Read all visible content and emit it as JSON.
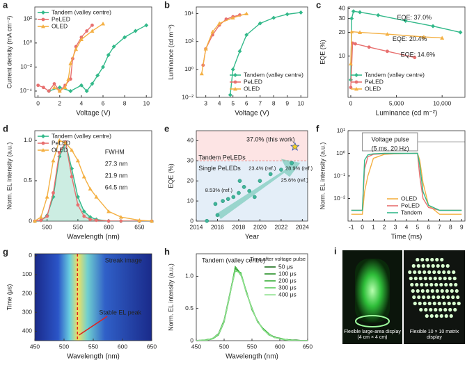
{
  "chart_data": [
    {
      "panel": "a",
      "type": "line",
      "x_label": "Voltage (V)",
      "y_label": "Current density (mA cm⁻²)",
      "log_y": true,
      "xlim": [
        -0.3,
        10.5
      ],
      "xticks": [
        0,
        2,
        4,
        6,
        8,
        10
      ],
      "ylim": [
        3e-05,
        1000
      ],
      "yticks": [
        {
          "value": 0.0001,
          "label": "10⁻⁴"
        },
        {
          "value": 0.01,
          "label": "10⁻²"
        },
        {
          "value": 1,
          "label": "10⁰"
        },
        {
          "value": 100,
          "label": "10²"
        }
      ],
      "legend": "upper left",
      "series": [
        {
          "name": "Tandem (valley centre)",
          "color": "#33b98a",
          "marker": "diamond",
          "x": [
            1,
            2,
            3,
            4,
            4.5,
            5,
            5.5,
            6,
            6.5,
            7,
            8,
            9,
            10
          ],
          "values": [
            0.0001,
            0.0002,
            0.0001,
            0.0003,
            0.0001,
            0.0004,
            0.002,
            0.01,
            0.1,
            0.5,
            3,
            10,
            30
          ]
        },
        {
          "name": "PeLED",
          "color": "#e8706f",
          "marker": "circle",
          "x": [
            0,
            0.5,
            1,
            1.5,
            2,
            2.5,
            3,
            3.2,
            3.5,
            4,
            4.5,
            5
          ],
          "values": [
            0.0003,
            0.0002,
            0.0001,
            0.0004,
            0.0001,
            0.0003,
            0.001,
            0.05,
            0.5,
            3,
            10,
            30
          ]
        },
        {
          "name": "OLED",
          "color": "#f4b043",
          "marker": "triangle",
          "x": [
            1.5,
            2,
            2.5,
            2.8,
            3,
            3.5,
            4,
            5,
            6
          ],
          "values": [
            0.0002,
            0.0001,
            0.0002,
            0.001,
            0.02,
            0.3,
            2,
            10,
            40
          ]
        }
      ]
    },
    {
      "panel": "b",
      "type": "line",
      "x_label": "Voltage (V)",
      "y_label": "Luminance (cd m⁻²)",
      "log_y": true,
      "xlim": [
        2.3,
        10.5
      ],
      "xticks": [
        3,
        4,
        5,
        6,
        7,
        8,
        9,
        10
      ],
      "ylim": [
        0.01,
        30000
      ],
      "yticks": [
        {
          "value": 0.01,
          "label": "10⁻²"
        },
        {
          "value": 1,
          "label": "10⁰"
        },
        {
          "value": 100,
          "label": "10²"
        },
        {
          "value": 10000,
          "label": "10⁴"
        }
      ],
      "legend": "lower right",
      "series": [
        {
          "name": "Tandem (valley centre)",
          "color": "#33b98a",
          "marker": "diamond",
          "x": [
            4.8,
            5,
            5.5,
            6,
            7,
            8,
            9,
            10
          ],
          "values": [
            0.015,
            1,
            20,
            300,
            2000,
            5000,
            9000,
            12000
          ]
        },
        {
          "name": "PeLED",
          "color": "#e8706f",
          "marker": "circle",
          "x": [
            2.8,
            3,
            3.5,
            4,
            4.5,
            5,
            5.5
          ],
          "values": [
            2,
            30,
            300,
            1500,
            4000,
            6000,
            8000
          ]
        },
        {
          "name": "OLED",
          "color": "#f4b043",
          "marker": "triangle",
          "x": [
            2.7,
            3,
            3.5,
            4,
            5,
            6
          ],
          "values": [
            0.5,
            30,
            500,
            2000,
            5000,
            10000
          ]
        }
      ]
    },
    {
      "panel": "c",
      "type": "line",
      "x_label": "Luminance (cd m⁻²)",
      "y_label": "EQE (%)",
      "log_y": true,
      "xlim": [
        -300,
        12500
      ],
      "xticks": [
        0,
        {
          "value": 5000,
          "label": "5,000"
        },
        {
          "value": 10000,
          "label": "10,000"
        }
      ],
      "ylim": [
        3,
        42
      ],
      "yticks": [
        10,
        20,
        30,
        40
      ],
      "legend": "lower left",
      "annotations": [
        {
          "text": "EQE: 37.0%",
          "color": "#33b98a"
        },
        {
          "text": "EQE: 20.4%",
          "color": "#f4b043"
        },
        {
          "text": "EQE: 14.6%",
          "color": "#e8706f"
        }
      ],
      "series": [
        {
          "name": "Tandem (valley centre)",
          "color": "#33b98a",
          "marker": "diamond",
          "x": [
            0,
            100,
            300,
            1000,
            3000,
            6000,
            9000,
            12000
          ],
          "values": [
            5,
            30,
            37,
            36,
            33,
            28,
            24,
            20
          ]
        },
        {
          "name": "PeLED",
          "color": "#e8706f",
          "marker": "circle",
          "x": [
            0,
            200,
            500,
            2000,
            4000,
            7000
          ],
          "values": [
            4,
            14.6,
            14.3,
            13,
            11.5,
            9.6
          ]
        },
        {
          "name": "OLED",
          "color": "#f4b043",
          "marker": "triangle",
          "x": [
            0,
            100,
            1000,
            4000,
            8000,
            10000
          ],
          "values": [
            8,
            20.4,
            20,
            19,
            17.5,
            17
          ]
        }
      ]
    },
    {
      "panel": "d",
      "type": "line",
      "x_label": "Wavelength (nm)",
      "y_label": "Norm. EL intensity (a.u.)",
      "xlim": [
        480,
        670
      ],
      "xticks": [
        500,
        550,
        600,
        650
      ],
      "ylim": [
        0,
        1.12
      ],
      "yticks": [
        0,
        0.5,
        {
          "value": 1,
          "label": "1.0"
        }
      ],
      "legend": "upper left",
      "annotations": [
        {
          "text": "FWHM",
          "color": "#222"
        },
        {
          "text": "27.3 nm",
          "color": "#33b98a"
        },
        {
          "text": "21.9 nm",
          "color": "#e8706f"
        },
        {
          "text": "64.5 nm",
          "color": "#f4b043"
        }
      ],
      "x": [
        480,
        490,
        500,
        510,
        520,
        530,
        540,
        550,
        560,
        570,
        580,
        600,
        620,
        650,
        670
      ],
      "series": [
        {
          "name": "Tandem (valley centre)",
          "color": "#33b98a",
          "marker": "diamond",
          "fill": true,
          "values": [
            0,
            0.01,
            0.07,
            0.3,
            0.8,
            0.97,
            0.65,
            0.3,
            0.12,
            0.05,
            0.02,
            0,
            0,
            0,
            0
          ]
        },
        {
          "name": "PeLED",
          "color": "#e8706f",
          "marker": "circle",
          "values": [
            0,
            0.01,
            0.06,
            0.35,
            0.85,
            0.98,
            0.55,
            0.2,
            0.06,
            0.02,
            0.01,
            0,
            0,
            0,
            0
          ]
        },
        {
          "name": "OLED",
          "color": "#f4b043",
          "marker": "triangle",
          "values": [
            0,
            0.05,
            0.3,
            0.75,
            1,
            0.97,
            0.88,
            0.75,
            0.55,
            0.4,
            0.3,
            0.12,
            0.05,
            0.01,
            0
          ]
        }
      ]
    },
    {
      "panel": "e",
      "type": "scatter",
      "x_label": "Year",
      "y_label": "EQE (%)",
      "xlim": [
        2014,
        2024.5
      ],
      "xticks": [
        2014,
        2016,
        2018,
        2020,
        2022,
        2024
      ],
      "ylim": [
        0,
        45
      ],
      "yticks": [
        0,
        10,
        20,
        30,
        40
      ],
      "region_boundary": 30,
      "color": "#3fb59a",
      "annotations": [
        {
          "text": "37.0% (this work)",
          "color": "#e04848"
        },
        {
          "text": "Tandem PeLEDs",
          "color": "#222"
        },
        {
          "text": "Single PeLEDs",
          "color": "#222"
        },
        {
          "text": "23.4% (ref.)",
          "color": "#222"
        },
        {
          "text": "28.9% (ref.)",
          "color": "#222"
        },
        {
          "text": "25.6% (ref.)",
          "color": "#222"
        },
        {
          "text": "8.53% (ref.)",
          "color": "#222"
        }
      ],
      "x": [
        2015,
        2015.8,
        2016,
        2016.5,
        2017,
        2017.5,
        2018,
        2018.1,
        2018.5,
        2019,
        2019.5,
        2020,
        2021,
        2022,
        2023
      ],
      "values": [
        0.1,
        8.53,
        3,
        10,
        11,
        12,
        14,
        20,
        17,
        15,
        12,
        20,
        23.4,
        25.6,
        28.9
      ],
      "star": {
        "x": 2023.3,
        "y": 37
      }
    },
    {
      "panel": "f",
      "type": "line",
      "x_label": "Time (ms)",
      "y_label": "Norm. EL intensity (a.u.)",
      "log_y": true,
      "xlim": [
        -1.3,
        9.3
      ],
      "xticks": [
        -1,
        0,
        1,
        2,
        3,
        4,
        5,
        6,
        7,
        8,
        9
      ],
      "ylim": [
        0.001,
        10
      ],
      "yticks": [
        {
          "value": 0.01,
          "label": "10⁻²"
        },
        {
          "value": 0.1,
          "label": "10⁻¹"
        },
        {
          "value": 1,
          "label": "10⁰"
        },
        {
          "value": 10,
          "label": "10¹"
        }
      ],
      "legend": "lower right",
      "pulse": [
        0,
        5
      ],
      "annotations": [
        {
          "text": "Voltage pulse",
          "color": "#222"
        },
        {
          "text": "(5 ms, 20 Hz)",
          "color": "#222"
        }
      ],
      "x": [
        -1,
        0,
        0.2,
        0.5,
        1,
        2,
        3,
        4,
        5,
        5.2,
        5.5,
        6,
        7,
        8,
        9
      ],
      "series": [
        {
          "name": "OLED",
          "color": "#f4b043",
          "marker": "none",
          "values": [
            0.002,
            0.002,
            0.02,
            0.1,
            0.6,
            0.9,
            0.95,
            0.98,
            1,
            0.5,
            0.05,
            0.005,
            0.002,
            0.002,
            0.002
          ]
        },
        {
          "name": "PeLED",
          "color": "#e8706f",
          "marker": "none",
          "values": [
            0.003,
            0.003,
            0.2,
            0.7,
            0.9,
            0.95,
            0.97,
            0.98,
            1,
            0.1,
            0.01,
            0.004,
            0.003,
            0.003,
            0.003
          ]
        },
        {
          "name": "Tandem",
          "color": "#33b98a",
          "marker": "none",
          "values": [
            0.003,
            0.003,
            0.5,
            0.85,
            0.95,
            1,
            1,
            1,
            1,
            0.3,
            0.02,
            0.005,
            0.003,
            0.003,
            0.003
          ]
        }
      ]
    },
    {
      "panel": "g",
      "type": "heatmap",
      "x_label": "Wavelength (nm)",
      "y_label": "Time (μs)",
      "xlim": [
        450,
        650
      ],
      "xticks": [
        450,
        500,
        550,
        600,
        650
      ],
      "ylim": [
        450,
        -10
      ],
      "yticks": [
        0,
        100,
        200,
        300,
        400
      ],
      "peak_wavelength": 523,
      "annotations": [
        {
          "text": "Streak image",
          "color": "#ffffff"
        },
        {
          "text": "Stable EL peak",
          "color": "#ffffff"
        }
      ]
    },
    {
      "panel": "h",
      "type": "line",
      "x_label": "Wavelength (nm)",
      "y_label": "Norm. EL intensity (a.u.)",
      "xlim": [
        450,
        650
      ],
      "xticks": [
        450,
        500,
        550,
        600,
        650
      ],
      "ylim": [
        0,
        1.35
      ],
      "yticks": [
        0,
        0.5,
        {
          "value": 1,
          "label": "1.0"
        }
      ],
      "legend": "upper right",
      "legend_title": "Time after voltage pulse",
      "annotations": [
        {
          "text": "Tandem (valley centre)",
          "color": "#222"
        }
      ],
      "x": [
        450,
        460,
        470,
        480,
        490,
        500,
        510,
        520,
        530,
        540,
        550,
        560,
        570,
        580,
        590,
        600,
        610,
        620,
        630,
        640,
        650
      ],
      "series": [
        {
          "name": "50 μs",
          "color": "#1b6e1b",
          "marker": "none",
          "values": [
            0,
            0,
            0.01,
            0.03,
            0.1,
            0.3,
            0.7,
            1.1,
            1.05,
            0.75,
            0.5,
            0.3,
            0.18,
            0.1,
            0.05,
            0.03,
            0.02,
            0.01,
            0,
            0,
            0
          ]
        },
        {
          "name": "100 μs",
          "color": "#278f27",
          "marker": "none",
          "values": [
            0,
            0.01,
            0.01,
            0.04,
            0.11,
            0.32,
            0.72,
            1.12,
            1.02,
            0.77,
            0.48,
            0.31,
            0.17,
            0.1,
            0.06,
            0.03,
            0.02,
            0.01,
            0.01,
            0,
            0
          ]
        },
        {
          "name": "200 μs",
          "color": "#35ad35",
          "marker": "none",
          "values": [
            0,
            0,
            0.02,
            0.03,
            0.09,
            0.29,
            0.69,
            1.15,
            1.04,
            0.74,
            0.51,
            0.29,
            0.19,
            0.11,
            0.05,
            0.04,
            0.02,
            0.01,
            0,
            0,
            0
          ]
        },
        {
          "name": "300 μs",
          "color": "#5ccb5c",
          "marker": "none",
          "values": [
            0,
            0,
            0.01,
            0.03,
            0.1,
            0.31,
            0.71,
            1.08,
            1.06,
            0.76,
            0.49,
            0.3,
            0.18,
            0.09,
            0.05,
            0.03,
            0.01,
            0.01,
            0,
            0,
            0
          ]
        },
        {
          "name": "400 μs",
          "color": "#93e293",
          "marker": "none",
          "values": [
            0,
            0.01,
            0.01,
            0.04,
            0.1,
            0.3,
            0.7,
            1.1,
            1.03,
            0.75,
            0.5,
            0.3,
            0.17,
            0.1,
            0.05,
            0.03,
            0.02,
            0,
            0,
            0,
            0
          ]
        }
      ]
    }
  ],
  "photo": {
    "panel": "i",
    "captions": [
      "Flexible large-area display (4 cm × 4 cm)",
      "Flexible 10 × 10 matrix display"
    ]
  }
}
